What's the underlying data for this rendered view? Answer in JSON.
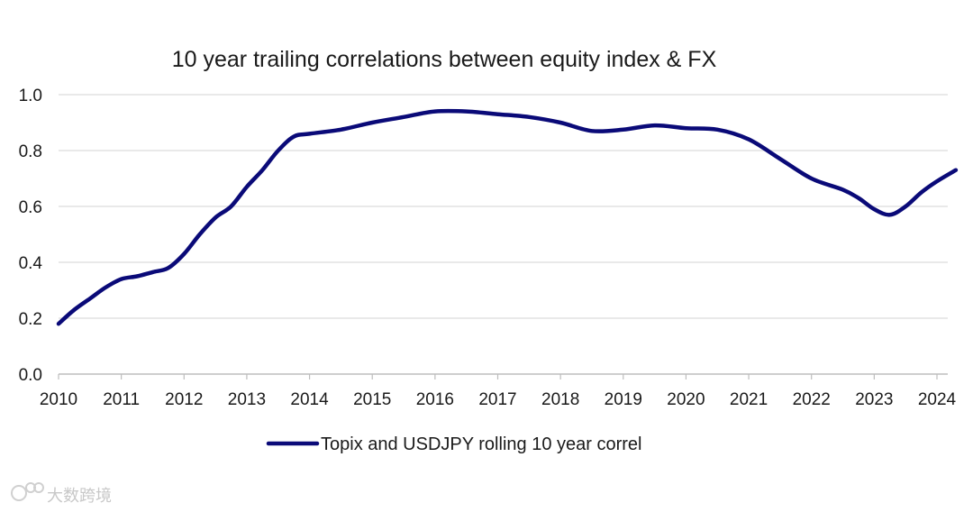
{
  "chart_data": {
    "type": "line",
    "title": "10 year trailing correlations between equity index & FX",
    "xlabel": "",
    "ylabel": "",
    "xlim": [
      2010,
      2024.3
    ],
    "ylim": [
      0,
      1.0
    ],
    "y_ticks": [
      "0.0",
      "0.2",
      "0.4",
      "0.6",
      "0.8",
      "1.0"
    ],
    "x_ticks": [
      "2010",
      "2011",
      "2012",
      "2013",
      "2014",
      "2015",
      "2016",
      "2017",
      "2018",
      "2019",
      "2020",
      "2021",
      "2022",
      "2023",
      "2024"
    ],
    "grid": "horizontal",
    "legend_position": "bottom-center",
    "series": [
      {
        "name": "Topix and USDJPY rolling 10 year correl",
        "color": "#0a0a78",
        "x": [
          2010.0,
          2010.25,
          2010.5,
          2010.75,
          2011.0,
          2011.25,
          2011.5,
          2011.75,
          2012.0,
          2012.25,
          2012.5,
          2012.75,
          2013.0,
          2013.25,
          2013.5,
          2013.75,
          2014.0,
          2014.5,
          2015.0,
          2015.5,
          2016.0,
          2016.5,
          2017.0,
          2017.5,
          2018.0,
          2018.5,
          2019.0,
          2019.5,
          2020.0,
          2020.5,
          2021.0,
          2021.5,
          2022.0,
          2022.5,
          2022.75,
          2023.0,
          2023.25,
          2023.5,
          2023.75,
          2024.0,
          2024.3
        ],
        "y": [
          0.18,
          0.23,
          0.27,
          0.31,
          0.34,
          0.35,
          0.365,
          0.38,
          0.43,
          0.5,
          0.56,
          0.6,
          0.67,
          0.73,
          0.8,
          0.85,
          0.86,
          0.875,
          0.9,
          0.92,
          0.94,
          0.94,
          0.93,
          0.92,
          0.9,
          0.87,
          0.875,
          0.89,
          0.88,
          0.875,
          0.84,
          0.77,
          0.7,
          0.66,
          0.63,
          0.59,
          0.57,
          0.6,
          0.65,
          0.69,
          0.73
        ]
      }
    ]
  },
  "watermark": {
    "text": "大数跨境",
    "icon": "chat-bubble-logo-icon"
  }
}
